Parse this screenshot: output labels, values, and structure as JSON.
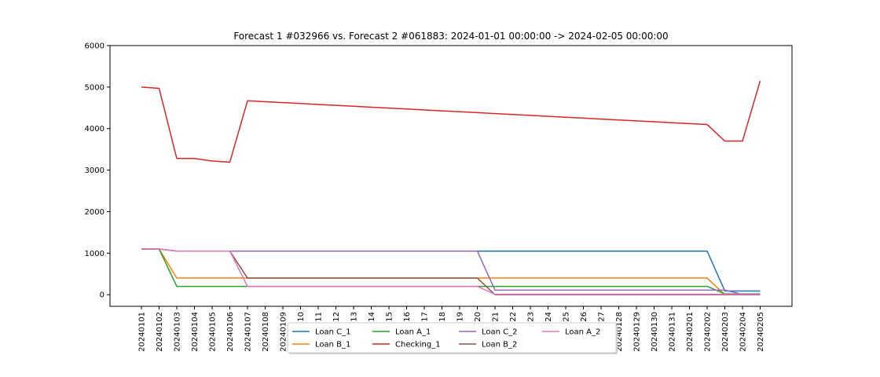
{
  "chart_data": {
    "type": "line",
    "title": "Forecast 1 #032966 vs. Forecast 2 #061883: 2024-01-01 00:00:00 -> 2024-02-05 00:00:00",
    "xlabel": "",
    "ylabel": "",
    "ylim": [
      -280,
      6000
    ],
    "yticks": [
      0,
      1000,
      2000,
      3000,
      4000,
      5000,
      6000
    ],
    "grid": false,
    "legend_position": "bottom-center",
    "x": [
      "20240101",
      "20240102",
      "20240103",
      "20240104",
      "20240105",
      "20240106",
      "20240107",
      "20240108",
      "20240109",
      "20240110",
      "20240111",
      "20240112",
      "20240113",
      "20240114",
      "20240115",
      "20240116",
      "20240117",
      "20240118",
      "20240119",
      "20240120",
      "20240121",
      "20240122",
      "20240123",
      "20240124",
      "20240125",
      "20240126",
      "20240127",
      "20240128",
      "20240129",
      "20240130",
      "20240131",
      "20240201",
      "20240202",
      "20240203",
      "20240204",
      "20240205"
    ],
    "series": [
      {
        "name": "Loan C_1",
        "color": "#1f77b4",
        "values": [
          1100,
          1100,
          1050,
          1050,
          1050,
          1050,
          1050,
          1050,
          1050,
          1050,
          1050,
          1050,
          1050,
          1050,
          1050,
          1050,
          1050,
          1050,
          1050,
          1050,
          1050,
          1050,
          1050,
          1050,
          1050,
          1050,
          1050,
          1050,
          1050,
          1050,
          1050,
          1050,
          1050,
          90,
          90,
          90
        ]
      },
      {
        "name": "Loan B_1",
        "color": "#ff7f0e",
        "values": [
          1100,
          1100,
          400,
          400,
          400,
          400,
          400,
          400,
          400,
          400,
          400,
          400,
          400,
          400,
          400,
          400,
          400,
          400,
          400,
          400,
          400,
          400,
          400,
          400,
          400,
          400,
          400,
          400,
          400,
          400,
          400,
          400,
          400,
          0,
          0,
          0
        ]
      },
      {
        "name": "Loan A_1",
        "color": "#2ca02c",
        "values": [
          1100,
          1100,
          200,
          200,
          200,
          200,
          200,
          200,
          200,
          200,
          200,
          200,
          200,
          200,
          200,
          200,
          200,
          200,
          200,
          200,
          200,
          200,
          200,
          200,
          200,
          200,
          200,
          200,
          200,
          200,
          200,
          200,
          200,
          20,
          20,
          20
        ]
      },
      {
        "name": "Checking_1",
        "color": "#d62728",
        "values": [
          5000,
          4970,
          3280,
          3280,
          3220,
          3190,
          4670,
          4648,
          4626,
          4604,
          4582,
          4560,
          4538,
          4516,
          4494,
          4472,
          4450,
          4428,
          4406,
          4384,
          4362,
          4340,
          4318,
          4296,
          4274,
          4252,
          4230,
          4208,
          4186,
          4164,
          4142,
          4120,
          4098,
          3700,
          3700,
          5150
        ]
      },
      {
        "name": "Loan C_2",
        "color": "#9467bd",
        "values": [
          1100,
          1100,
          1050,
          1050,
          1050,
          1050,
          1050,
          1050,
          1050,
          1050,
          1050,
          1050,
          1050,
          1050,
          1050,
          1050,
          1050,
          1050,
          1050,
          1050,
          110,
          110,
          110,
          110,
          110,
          110,
          110,
          110,
          110,
          110,
          110,
          110,
          110,
          110,
          10,
          10
        ]
      },
      {
        "name": "Loan B_2",
        "color": "#8c564b",
        "values": [
          1100,
          1100,
          1050,
          1050,
          1050,
          1050,
          400,
          400,
          400,
          400,
          400,
          400,
          400,
          400,
          400,
          400,
          400,
          400,
          400,
          400,
          0,
          0,
          0,
          0,
          0,
          0,
          0,
          0,
          0,
          0,
          0,
          0,
          0,
          0,
          0,
          0
        ]
      },
      {
        "name": "Loan A_2",
        "color": "#e377c2",
        "values": [
          1100,
          1100,
          1050,
          1050,
          1050,
          1050,
          200,
          200,
          200,
          200,
          200,
          200,
          200,
          200,
          200,
          200,
          200,
          200,
          200,
          200,
          10,
          10,
          10,
          10,
          10,
          10,
          10,
          10,
          10,
          10,
          10,
          10,
          10,
          10,
          10,
          10
        ]
      }
    ]
  }
}
